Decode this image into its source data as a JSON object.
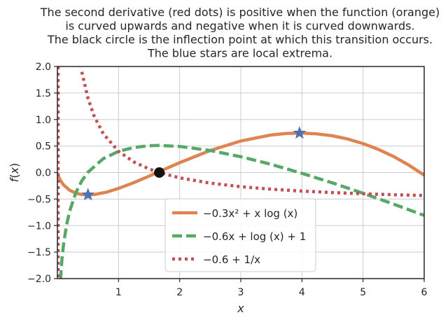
{
  "chart_data": {
    "type": "line",
    "title_lines": [
      "The second derivative (red dots) is positive when the function (orange)",
      "is curved upwards and negative when it is curved downwards.",
      "The black circle is the inflection point at which this transition occurs.",
      "The blue stars are local extrema."
    ],
    "xlabel": "x",
    "ylabel": "f(x)",
    "xlim": [
      0,
      6
    ],
    "ylim": [
      -2,
      2
    ],
    "xticks": [
      1,
      2,
      3,
      4,
      5,
      6
    ],
    "xtick_labels": [
      "1",
      "2",
      "3",
      "4",
      "5",
      "6"
    ],
    "yticks": [
      -2,
      -1.5,
      -1,
      -0.5,
      0,
      0.5,
      1,
      1.5,
      2
    ],
    "ytick_labels": [
      "−2.0",
      "−1.5",
      "−1.0",
      "−0.5",
      "0.0",
      "0.5",
      "1.0",
      "1.5",
      "2.0"
    ],
    "grid": true,
    "legend_position": "bottom-center",
    "series": [
      {
        "name": "−0.3x² + x log (x)",
        "style": "solid",
        "color": "#dd8452",
        "x": [
          0.001,
          0.02,
          0.05,
          0.1,
          0.2,
          0.3,
          0.4,
          0.5,
          0.6,
          0.8,
          1.0,
          1.25,
          1.5,
          1.75,
          2.0,
          2.5,
          3.0,
          3.5,
          3.75,
          4.0,
          4.25,
          4.5,
          4.75,
          5.0,
          5.25,
          5.5,
          5.75,
          6.0
        ],
        "y": [
          -0.007,
          -0.078,
          -0.151,
          -0.233,
          -0.334,
          -0.388,
          -0.414,
          -0.422,
          -0.414,
          -0.371,
          -0.3,
          -0.19,
          -0.067,
          0.061,
          0.186,
          0.416,
          0.596,
          0.71,
          0.738,
          0.745,
          0.729,
          0.693,
          0.633,
          0.547,
          0.437,
          0.302,
          0.139,
          -0.049
        ]
      },
      {
        "name": "−0.6x + log (x) + 1",
        "style": "dashed",
        "color": "#55a868",
        "x": [
          0.05,
          0.075,
          0.1,
          0.15,
          0.2,
          0.3,
          0.4,
          0.5,
          0.75,
          1.0,
          1.25,
          1.5,
          1.67,
          2.0,
          2.5,
          3.0,
          3.5,
          4.0,
          4.5,
          5.0,
          5.5,
          6.0
        ],
        "y": [
          -2.026,
          -1.635,
          -1.363,
          -0.987,
          -0.729,
          -0.384,
          -0.156,
          0.007,
          0.262,
          0.4,
          0.473,
          0.505,
          0.511,
          0.493,
          0.416,
          0.299,
          0.153,
          -0.014,
          -0.196,
          -0.391,
          -0.595,
          -0.808
        ]
      },
      {
        "name": "−0.6 + 1/x",
        "style": "dotted",
        "color": "#c44e52",
        "x": [
          0.4,
          0.5,
          0.6,
          0.75,
          1.0,
          1.25,
          1.5,
          1.67,
          2.0,
          2.5,
          3.0,
          3.5,
          4.0,
          4.5,
          5.0,
          5.5,
          6.0
        ],
        "y": [
          1.9,
          1.4,
          1.067,
          0.733,
          0.4,
          0.2,
          0.067,
          0.0,
          -0.1,
          -0.2,
          -0.267,
          -0.314,
          -0.35,
          -0.378,
          -0.4,
          -0.418,
          -0.433
        ]
      }
    ],
    "markers": [
      {
        "type": "star",
        "x": 0.5,
        "y": -0.42,
        "color": "#4c72b0"
      },
      {
        "type": "star",
        "x": 3.96,
        "y": 0.745,
        "color": "#4c72b0"
      },
      {
        "type": "circle",
        "x": 1.667,
        "y": 0.0,
        "color": "#111111"
      }
    ]
  }
}
